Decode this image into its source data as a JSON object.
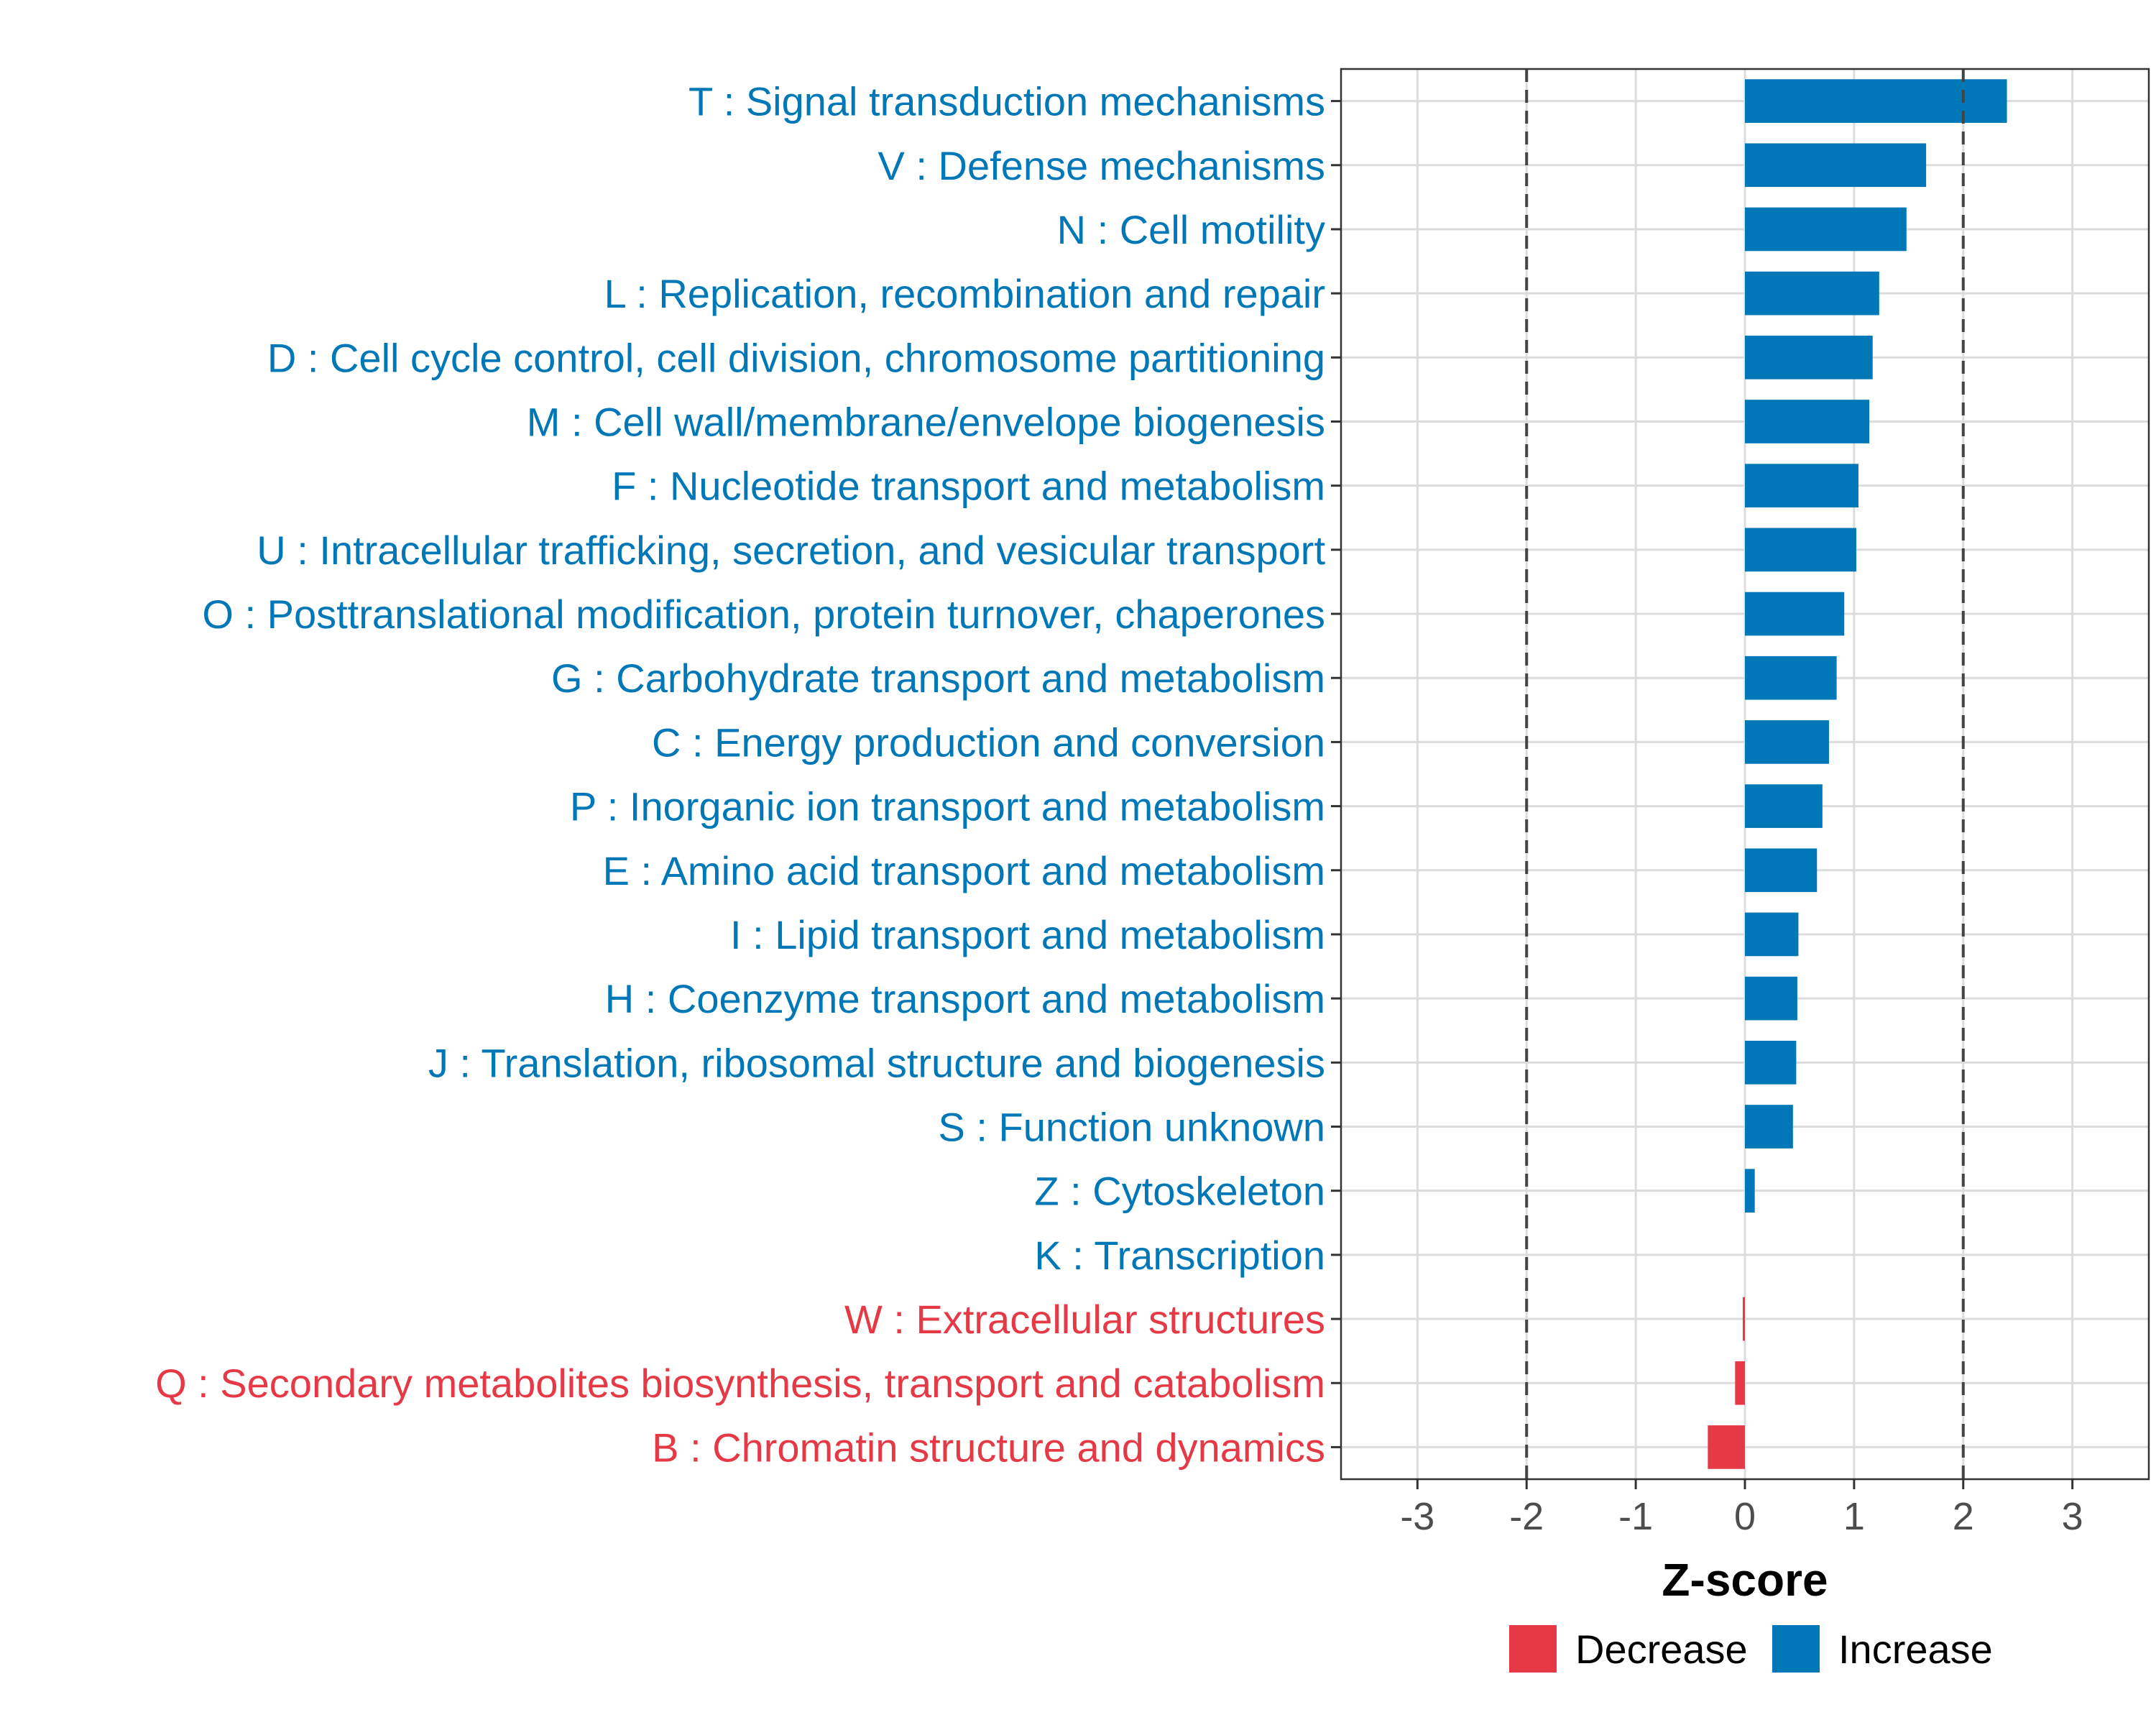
{
  "chart_data": {
    "type": "bar",
    "orientation": "horizontal",
    "xlabel": "Z-score",
    "ylabel": "",
    "xlim": [
      -3.7,
      3.7
    ],
    "x_ticks": [
      -3,
      -2,
      -1,
      0,
      1,
      2,
      3
    ],
    "x_tick_labels": [
      "-3",
      "-2",
      "-1",
      "0",
      "1",
      "2",
      "3"
    ],
    "threshold_lines": [
      -2,
      2
    ],
    "grid": true,
    "legend_position": "bottom",
    "colors": {
      "Decrease": "#e63946",
      "Increase": "#0077b6"
    },
    "legend": [
      {
        "label": "Decrease",
        "color": "#e63946"
      },
      {
        "label": "Increase",
        "color": "#0077b6"
      }
    ],
    "categories": [
      {
        "label": "T : Signal transduction mechanisms",
        "value": 2.4,
        "direction": "Increase"
      },
      {
        "label": "V : Defense mechanisms",
        "value": 1.66,
        "direction": "Increase"
      },
      {
        "label": "N : Cell motility",
        "value": 1.48,
        "direction": "Increase"
      },
      {
        "label": "L : Replication, recombination and repair",
        "value": 1.23,
        "direction": "Increase"
      },
      {
        "label": "D : Cell cycle control, cell division, chromosome partitioning",
        "value": 1.17,
        "direction": "Increase"
      },
      {
        "label": "M : Cell wall/membrane/envelope biogenesis",
        "value": 1.14,
        "direction": "Increase"
      },
      {
        "label": "F : Nucleotide transport and metabolism",
        "value": 1.04,
        "direction": "Increase"
      },
      {
        "label": "U : Intracellular trafficking, secretion, and vesicular transport",
        "value": 1.02,
        "direction": "Increase"
      },
      {
        "label": "O : Posttranslational modification, protein turnover, chaperones",
        "value": 0.91,
        "direction": "Increase"
      },
      {
        "label": "G : Carbohydrate transport and metabolism",
        "value": 0.84,
        "direction": "Increase"
      },
      {
        "label": "C : Energy production and conversion",
        "value": 0.77,
        "direction": "Increase"
      },
      {
        "label": "P : Inorganic ion transport and metabolism",
        "value": 0.71,
        "direction": "Increase"
      },
      {
        "label": "E : Amino acid transport and metabolism",
        "value": 0.66,
        "direction": "Increase"
      },
      {
        "label": "I : Lipid transport and metabolism",
        "value": 0.49,
        "direction": "Increase"
      },
      {
        "label": "H : Coenzyme transport and metabolism",
        "value": 0.48,
        "direction": "Increase"
      },
      {
        "label": "J : Translation, ribosomal structure and biogenesis",
        "value": 0.47,
        "direction": "Increase"
      },
      {
        "label": "S : Function unknown",
        "value": 0.44,
        "direction": "Increase"
      },
      {
        "label": "Z : Cytoskeleton",
        "value": 0.09,
        "direction": "Increase"
      },
      {
        "label": "K : Transcription",
        "value": 0.0,
        "direction": "Increase"
      },
      {
        "label": "W : Extracellular structures",
        "value": -0.02,
        "direction": "Decrease"
      },
      {
        "label": "Q : Secondary metabolites biosynthesis, transport and catabolism",
        "value": -0.09,
        "direction": "Decrease"
      },
      {
        "label": "B : Chromatin structure and dynamics",
        "value": -0.34,
        "direction": "Decrease"
      }
    ]
  }
}
